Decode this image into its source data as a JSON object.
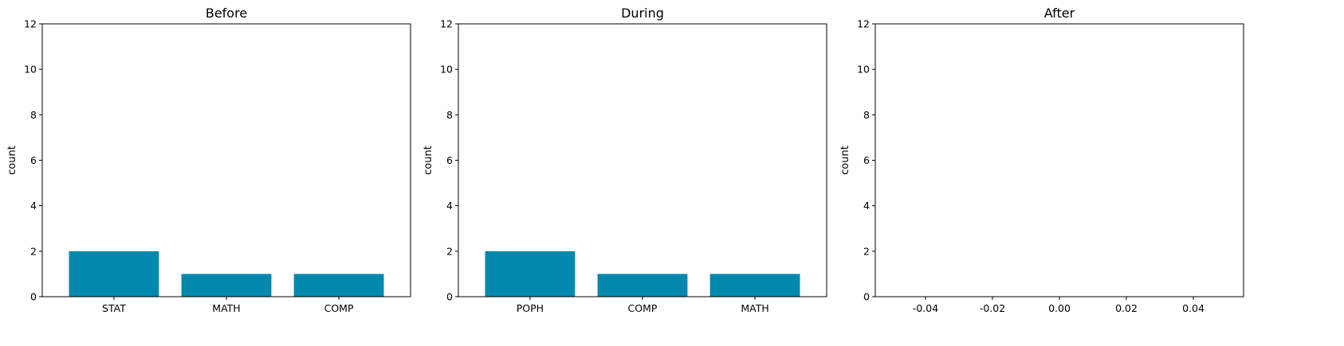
{
  "chart_data": [
    {
      "type": "bar",
      "title": "Before",
      "ylabel": "count",
      "ylim": [
        0,
        12
      ],
      "yticks": [
        "0",
        "2",
        "4",
        "6",
        "8",
        "10",
        "12"
      ],
      "categories": [
        "STAT",
        "MATH",
        "COMP"
      ],
      "values": [
        2,
        1,
        1
      ],
      "color": "#0088ad"
    },
    {
      "type": "bar",
      "title": "During",
      "ylabel": "count",
      "ylim": [
        0,
        12
      ],
      "yticks": [
        "0",
        "2",
        "4",
        "6",
        "8",
        "10",
        "12"
      ],
      "categories": [
        "POPH",
        "COMP",
        "MATH"
      ],
      "values": [
        2,
        1,
        1
      ],
      "color": "#0088ad"
    },
    {
      "type": "bar",
      "title": "After",
      "ylabel": "count",
      "ylim": [
        0,
        12
      ],
      "yticks": [
        "0",
        "2",
        "4",
        "6",
        "8",
        "10",
        "12"
      ],
      "xlim": [
        -0.055,
        0.055
      ],
      "xticks": [
        "-0.04",
        "-0.02",
        "0.00",
        "0.02",
        "0.04"
      ],
      "xtick_values": [
        -0.04,
        -0.02,
        0,
        0.02,
        0.04
      ],
      "categories": [],
      "values": [],
      "color": "#0088ad"
    }
  ]
}
